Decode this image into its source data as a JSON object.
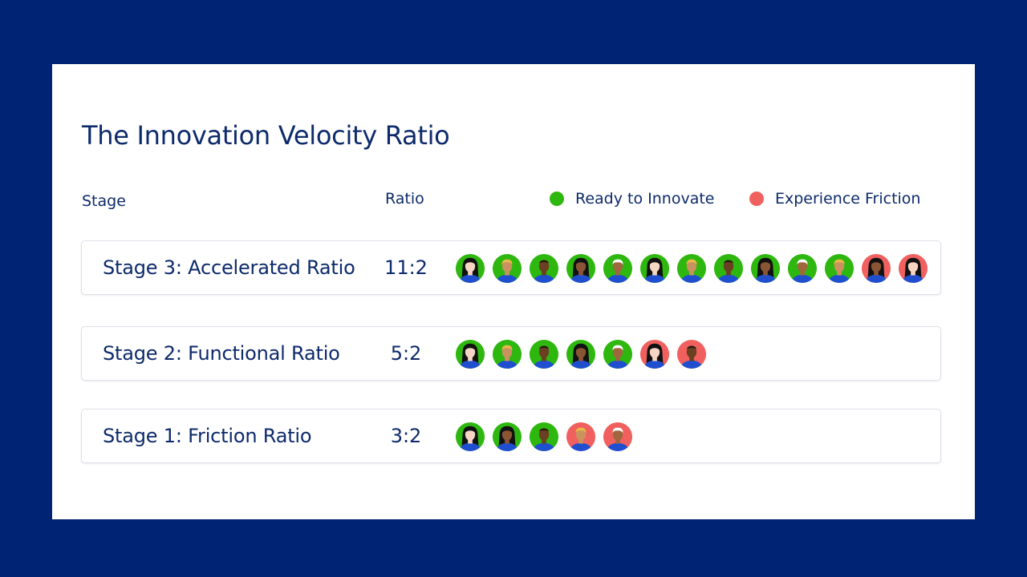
{
  "chart_data": {
    "type": "table",
    "title": "The Innovation Velocity Ratio",
    "columns": {
      "stage": "Stage",
      "ratio": "Ratio"
    },
    "legend": [
      {
        "name": "Ready to Innovate",
        "color": "#2eb70f"
      },
      {
        "name": "Experience Friction",
        "color": "#f0605f"
      }
    ],
    "rows": [
      {
        "label": "Stage 3: Accelerated Ratio",
        "ratio": "11:2",
        "ready": 11,
        "friction": 2,
        "people": [
          {
            "skin": "#f5d6c4",
            "hair": "#111111",
            "style": "long"
          },
          {
            "skin": "#c9925f",
            "hair": "#e8b84a",
            "style": "short"
          },
          {
            "skin": "#6b3f22",
            "hair": "#2a1a10",
            "style": "bald"
          },
          {
            "skin": "#8a5535",
            "hair": "#111111",
            "style": "long"
          },
          {
            "skin": "#a0663e",
            "hair": "#ffffff",
            "style": "short"
          },
          {
            "skin": "#f5d6c4",
            "hair": "#111111",
            "style": "long"
          },
          {
            "skin": "#c9925f",
            "hair": "#e8b84a",
            "style": "short"
          },
          {
            "skin": "#6b3f22",
            "hair": "#2a1a10",
            "style": "bald"
          },
          {
            "skin": "#8a5535",
            "hair": "#111111",
            "style": "long"
          },
          {
            "skin": "#a0663e",
            "hair": "#ffffff",
            "style": "short"
          },
          {
            "skin": "#c9925f",
            "hair": "#e8b84a",
            "style": "short"
          },
          {
            "skin": "#8a5535",
            "hair": "#111111",
            "style": "long"
          },
          {
            "skin": "#f5d6c4",
            "hair": "#111111",
            "style": "long"
          }
        ]
      },
      {
        "label": "Stage 2: Functional Ratio",
        "ratio": "5:2",
        "ready": 5,
        "friction": 2,
        "people": [
          {
            "skin": "#f5d6c4",
            "hair": "#111111",
            "style": "long"
          },
          {
            "skin": "#c9925f",
            "hair": "#e8b84a",
            "style": "short"
          },
          {
            "skin": "#6b3f22",
            "hair": "#2a1a10",
            "style": "bald"
          },
          {
            "skin": "#8a5535",
            "hair": "#111111",
            "style": "long"
          },
          {
            "skin": "#a0663e",
            "hair": "#ffffff",
            "style": "short"
          },
          {
            "skin": "#f5d6c4",
            "hair": "#111111",
            "style": "long"
          },
          {
            "skin": "#6b3f22",
            "hair": "#2a1a10",
            "style": "bald"
          }
        ]
      },
      {
        "label": "Stage 1: Friction Ratio",
        "ratio": "3:2",
        "ready": 3,
        "friction": 2,
        "people": [
          {
            "skin": "#f5d6c4",
            "hair": "#111111",
            "style": "long"
          },
          {
            "skin": "#8a5535",
            "hair": "#111111",
            "style": "long"
          },
          {
            "skin": "#6b3f22",
            "hair": "#2a1a10",
            "style": "bald"
          },
          {
            "skin": "#c9925f",
            "hair": "#e8b84a",
            "style": "short"
          },
          {
            "skin": "#a0663e",
            "hair": "#ffffff",
            "style": "short"
          }
        ]
      }
    ]
  },
  "shirt_color": "#1f4fcf"
}
